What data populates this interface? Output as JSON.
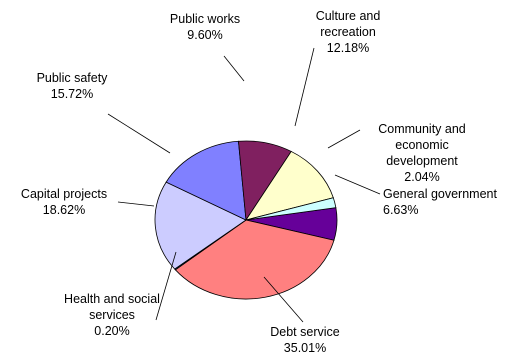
{
  "chart_data": {
    "type": "pie",
    "title": "",
    "legend": "none",
    "slices": [
      {
        "name": "General government",
        "label_lines": [
          "General government"
        ],
        "percent_label": "6.63%",
        "value": 6.63,
        "color": "#660099"
      },
      {
        "name": "Debt service",
        "label_lines": [
          "Debt service"
        ],
        "percent_label": "35.01%",
        "value": 35.01,
        "color": "#ff8080"
      },
      {
        "name": "Health and social services",
        "label_lines": [
          "Health and social",
          "services"
        ],
        "percent_label": "0.20%",
        "value": 0.2,
        "color": "#0066cc"
      },
      {
        "name": "Capital projects",
        "label_lines": [
          "Capital projects"
        ],
        "percent_label": "18.62%",
        "value": 18.62,
        "color": "#ccccff"
      },
      {
        "name": "Public safety",
        "label_lines": [
          "Public safety"
        ],
        "percent_label": "15.72%",
        "value": 15.72,
        "color": "#8080ff"
      },
      {
        "name": "Public works",
        "label_lines": [
          "Public works"
        ],
        "percent_label": "9.60%",
        "value": 9.6,
        "color": "#802060"
      },
      {
        "name": "Culture and recreation",
        "label_lines": [
          "Culture and",
          "recreation"
        ],
        "percent_label": "12.18%",
        "value": 12.18,
        "color": "#ffffcc"
      },
      {
        "name": "Community and economic development",
        "label_lines": [
          "Community and",
          "economic",
          "development"
        ],
        "percent_label": "2.04%",
        "value": 2.04,
        "color": "#ccffff"
      }
    ]
  }
}
